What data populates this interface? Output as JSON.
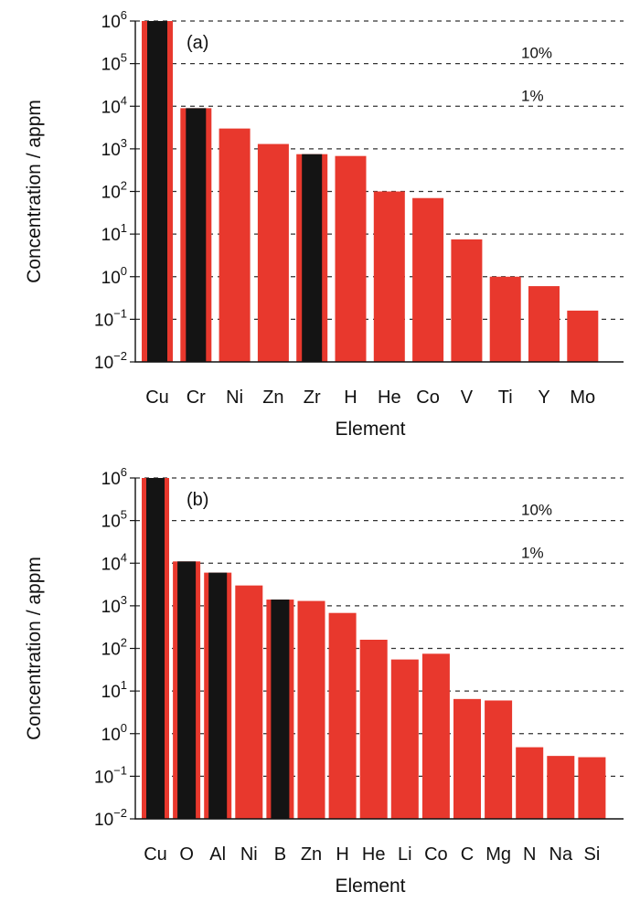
{
  "colors": {
    "red": "#e8382d",
    "black": "#141414"
  },
  "figure": {
    "panels": [
      {
        "tag": "(a)",
        "ylabel": "Concentration / appm",
        "xlabel": "Element",
        "pct_labels": [
          "10%",
          "1%"
        ]
      },
      {
        "tag": "(b)",
        "ylabel": "Concentration / appm",
        "xlabel": "Element",
        "pct_labels": [
          "10%",
          "1%"
        ]
      }
    ]
  },
  "chart_data": [
    {
      "type": "bar",
      "panel": "(a)",
      "title": "",
      "xlabel": "Element",
      "ylabel": "Concentration / appm",
      "y_scale": "log",
      "ylim": [
        0.01,
        1000000
      ],
      "grid": "dashed horizontal at each decade",
      "y_ticks": [
        {
          "base": "10",
          "exp": "6"
        },
        {
          "base": "10",
          "exp": "5"
        },
        {
          "base": "10",
          "exp": "4"
        },
        {
          "base": "10",
          "exp": "3"
        },
        {
          "base": "10",
          "exp": "2"
        },
        {
          "base": "10",
          "exp": "1"
        },
        {
          "base": "10",
          "exp": "0"
        },
        {
          "base": "10",
          "exp": "−1"
        },
        {
          "base": "10",
          "exp": "−2"
        }
      ],
      "reference_lines": [
        {
          "label": "10%",
          "value": 100000
        },
        {
          "label": "1%",
          "value": 10000
        }
      ],
      "categories": [
        "Cu",
        "Cr",
        "Ni",
        "Zn",
        "Zr",
        "H",
        "He",
        "Co",
        "V",
        "Ti",
        "Y",
        "Mo"
      ],
      "values": [
        1000000,
        9000,
        3000,
        1300,
        750,
        680,
        100,
        70,
        7.5,
        1.0,
        0.6,
        0.16
      ],
      "highlighted": [
        true,
        true,
        false,
        false,
        true,
        false,
        false,
        false,
        false,
        false,
        false,
        false
      ]
    },
    {
      "type": "bar",
      "panel": "(b)",
      "title": "",
      "xlabel": "Element",
      "ylabel": "Concentration / appm",
      "y_scale": "log",
      "ylim": [
        0.01,
        1000000
      ],
      "grid": "dashed horizontal at each decade",
      "y_ticks": [
        {
          "base": "10",
          "exp": "6"
        },
        {
          "base": "10",
          "exp": "5"
        },
        {
          "base": "10",
          "exp": "4"
        },
        {
          "base": "10",
          "exp": "3"
        },
        {
          "base": "10",
          "exp": "2"
        },
        {
          "base": "10",
          "exp": "1"
        },
        {
          "base": "10",
          "exp": "0"
        },
        {
          "base": "10",
          "exp": "−1"
        },
        {
          "base": "10",
          "exp": "−2"
        }
      ],
      "reference_lines": [
        {
          "label": "10%",
          "value": 100000
        },
        {
          "label": "1%",
          "value": 10000
        }
      ],
      "categories": [
        "Cu",
        "O",
        "Al",
        "Ni",
        "B",
        "Zn",
        "H",
        "He",
        "Li",
        "Co",
        "C",
        "Mg",
        "N",
        "Na",
        "Si"
      ],
      "values": [
        1000000,
        11000,
        6000,
        3000,
        1400,
        1300,
        680,
        160,
        55,
        75,
        6.5,
        6,
        0.48,
        0.3,
        0.28
      ],
      "highlighted": [
        true,
        true,
        true,
        false,
        true,
        false,
        false,
        false,
        false,
        false,
        false,
        false,
        false,
        false,
        false
      ]
    }
  ]
}
